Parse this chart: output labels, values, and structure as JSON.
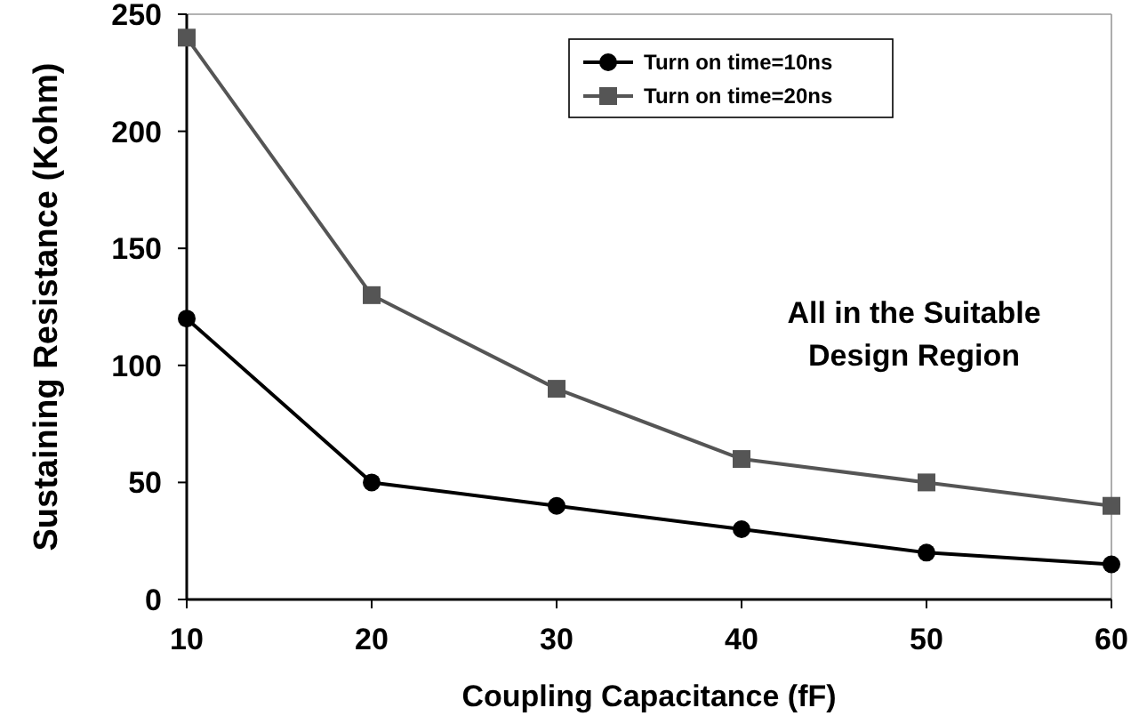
{
  "chart_data": {
    "type": "line",
    "xlabel": "Coupling Capacitance (fF)",
    "ylabel": "Sustaining Resistance (Kohm)",
    "x": [
      10,
      20,
      30,
      40,
      50,
      60
    ],
    "xlim": [
      10,
      60
    ],
    "xticks": [
      10,
      20,
      30,
      40,
      50,
      60
    ],
    "ylim": [
      0,
      250
    ],
    "yticks": [
      0,
      50,
      100,
      150,
      200,
      250
    ],
    "legend": "top right",
    "annotations": [
      "All in the Suitable Design Region"
    ],
    "series": [
      {
        "name": "Turn on time=10ns",
        "color": "#000000",
        "marker": "circle",
        "values": [
          120,
          50,
          40,
          30,
          20,
          15
        ]
      },
      {
        "name": "Turn on time=20ns",
        "color": "#555555",
        "marker": "square",
        "values": [
          240,
          130,
          90,
          60,
          50,
          40
        ]
      }
    ]
  }
}
